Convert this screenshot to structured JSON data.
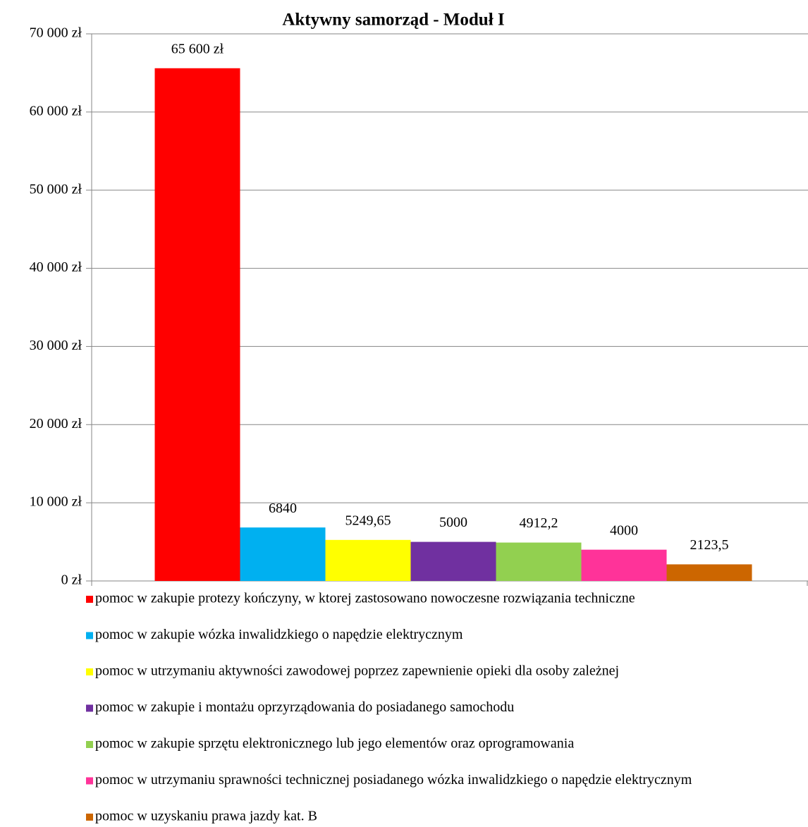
{
  "chart_data": {
    "type": "bar",
    "title": "Aktywny samorząd - Moduł I",
    "categories": [
      null
    ],
    "series": [
      {
        "name": "pomoc w zakupie protezy kończyny, w ktorej zastosowano nowoczesne rozwiązania techniczne",
        "color": "#ff0000",
        "values": [
          65600
        ],
        "value_labels": [
          "65 600 zł"
        ]
      },
      {
        "name": "pomoc w zakupie wózka inwalidzkiego o napędzie elektrycznym",
        "color": "#00b0f0",
        "values": [
          6840
        ],
        "value_labels": [
          "6840"
        ]
      },
      {
        "name": "pomoc w utrzymaniu aktywności zawodowej poprzez zapewnienie opieki dla osoby zależnej",
        "color": "#ffff00",
        "values": [
          5249.65
        ],
        "value_labels": [
          "5249,65"
        ]
      },
      {
        "name": "pomoc w zakupie i montażu oprzyrządowania do posiadanego samochodu",
        "color": "#7030a0",
        "values": [
          5000
        ],
        "value_labels": [
          "5000"
        ]
      },
      {
        "name": "pomoc w zakupie sprzętu elektronicznego lub jego elementów oraz oprogramowania",
        "color": "#92d050",
        "values": [
          4912.2
        ],
        "value_labels": [
          "4912,2"
        ]
      },
      {
        "name": "pomoc w utrzymaniu sprawności technicznej posiadanego wózka inwalidzkiego o napędzie elektrycznym",
        "color": "#ff3399",
        "values": [
          4000
        ],
        "value_labels": [
          "4000"
        ]
      },
      {
        "name": "pomoc w uzyskaniu prawa jazdy kat. B",
        "color": "#cc6600",
        "values": [
          2123.5
        ],
        "value_labels": [
          "2123,5"
        ]
      }
    ],
    "ylim": [
      0,
      70000
    ],
    "yticks": [
      {
        "value": 0,
        "label": "0 zł"
      },
      {
        "value": 10000,
        "label": "10 000 zł"
      },
      {
        "value": 20000,
        "label": "20 000 zł"
      },
      {
        "value": 30000,
        "label": "30 000 zł"
      },
      {
        "value": 40000,
        "label": "40 000 zł"
      },
      {
        "value": 50000,
        "label": "50 000 zł"
      },
      {
        "value": 60000,
        "label": "60 000 zł"
      },
      {
        "value": 70000,
        "label": "70 000 zł"
      }
    ],
    "grid": true,
    "legend": "bottom"
  }
}
